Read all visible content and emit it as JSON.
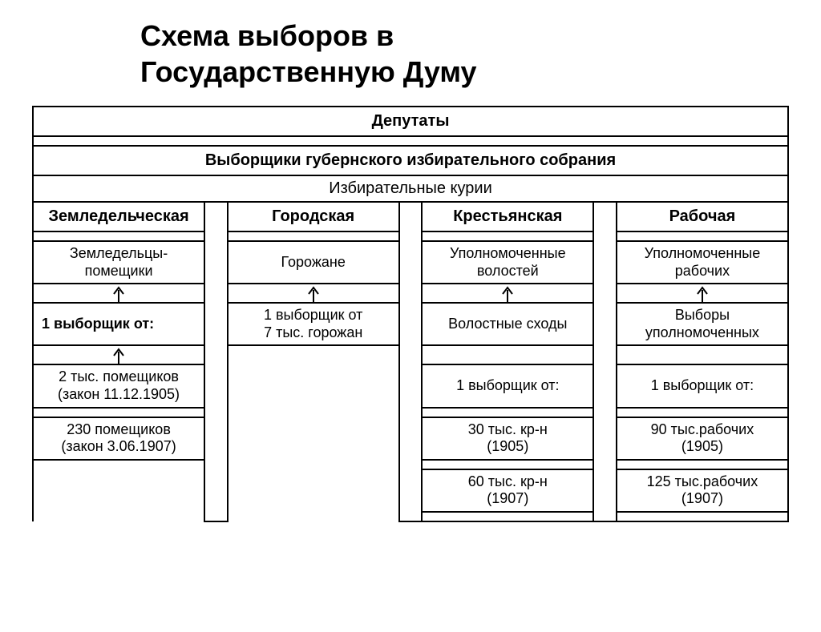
{
  "title_line1": "Схема выборов в",
  "title_line2": "Государственную Думу",
  "diagram": {
    "type": "flowchart",
    "background_color": "#ffffff",
    "border_color": "#000000",
    "text_color": "#000000",
    "font_family": "Arial",
    "title_fontsize": 36,
    "header_fontsize": 20,
    "cell_fontsize": 18,
    "border_width": 2,
    "arrow": {
      "direction": "up",
      "stroke": "#000000",
      "stroke_width": 2,
      "head_width": 12,
      "head_height": 8
    },
    "levels": {
      "deputies": "Депутаты",
      "electors": "Выборщики губернского избирательного собрания",
      "curiae_label": "Избирательные  курии"
    },
    "curiae": [
      {
        "name": "Земледельческая",
        "row1": "Земледельцы-\nпомещики",
        "row2": "1 выборщик от:",
        "row2_align": "left",
        "row3": "2 тыс. помещиков\n(закон 11.12.1905)",
        "row4": "230 помещиков\n(закон 3.06.1907)",
        "row5": "",
        "arrows_after": [
          1,
          2
        ]
      },
      {
        "name": "Городская",
        "row1": "Горожане",
        "row2": "1 выборщик от\n7 тыс. горожан",
        "row2_align": "center",
        "row3": "",
        "row4": "",
        "row5": "",
        "arrows_after": [
          1
        ]
      },
      {
        "name": "Крестьянская",
        "row1": "Уполномоченные\nволостей",
        "row2": "Волостные сходы",
        "row2_align": "center",
        "row3": "1 выборщик от:",
        "row4": "30 тыс. кр-н\n(1905)",
        "row5": "60 тыс. кр-н\n(1907)",
        "arrows_after": [
          1
        ]
      },
      {
        "name": "Рабочая",
        "row1": "Уполномоченные\nрабочих",
        "row2": "Выборы\nуполномоченных",
        "row2_align": "center",
        "row3": "1 выборщик от:",
        "row4": "90 тыс.рабочих\n(1905)",
        "row5": "125 тыс.рабочих\n(1907)",
        "arrows_after": [
          1
        ]
      }
    ],
    "column_widths_percent": [
      22,
      3,
      22,
      3,
      22,
      3,
      22
    ]
  }
}
